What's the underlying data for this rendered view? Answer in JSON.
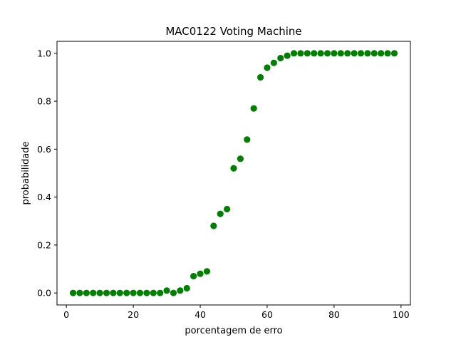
{
  "chart_data": {
    "type": "scatter",
    "title": "MAC0122 Voting Machine",
    "xlabel": "porcentagem de erro",
    "ylabel": "probabilidade",
    "xlim": [
      -2.8,
      102.8
    ],
    "ylim": [
      -0.05,
      1.05
    ],
    "xticks": [
      0,
      20,
      40,
      60,
      80,
      100
    ],
    "yticks": [
      0.0,
      0.2,
      0.4,
      0.6,
      0.8,
      1.0
    ],
    "xtick_labels": [
      "0",
      "20",
      "40",
      "60",
      "80",
      "100"
    ],
    "ytick_labels": [
      "0.0",
      "0.2",
      "0.4",
      "0.6",
      "0.8",
      "1.0"
    ],
    "grid": false,
    "marker_color": "#008000",
    "x": [
      2,
      4,
      6,
      8,
      10,
      12,
      14,
      16,
      18,
      20,
      22,
      24,
      26,
      28,
      30,
      32,
      34,
      36,
      38,
      40,
      42,
      44,
      46,
      48,
      50,
      52,
      54,
      56,
      58,
      60,
      62,
      64,
      66,
      68,
      70,
      72,
      74,
      76,
      78,
      80,
      82,
      84,
      86,
      88,
      90,
      92,
      94,
      96,
      98
    ],
    "y": [
      0,
      0,
      0,
      0,
      0,
      0,
      0,
      0,
      0,
      0,
      0,
      0,
      0,
      0,
      0.01,
      0,
      0.01,
      0.02,
      0.07,
      0.08,
      0.09,
      0.28,
      0.33,
      0.35,
      0.52,
      0.56,
      0.64,
      0.77,
      0.9,
      0.94,
      0.96,
      0.98,
      0.99,
      1,
      1,
      1,
      1,
      1,
      1,
      1,
      1,
      1,
      1,
      1,
      1,
      1,
      1,
      1,
      1
    ]
  }
}
